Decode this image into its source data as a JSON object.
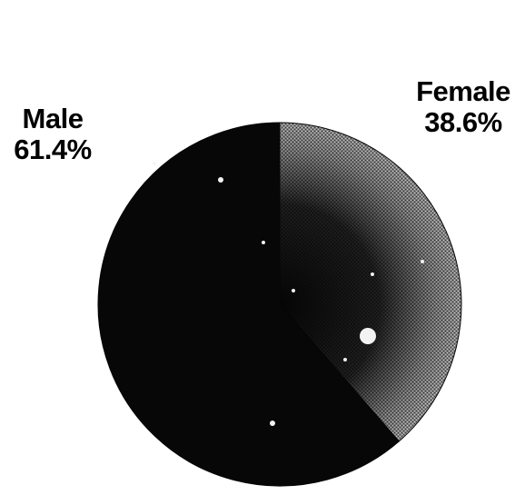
{
  "chart_data": {
    "type": "pie",
    "title": "",
    "slices": [
      {
        "label": "Male",
        "value": 61.4,
        "display": "61.4%",
        "color": "#070707"
      },
      {
        "label": "Female",
        "value": 38.6,
        "display": "38.6%",
        "color": "#7a7a7a"
      }
    ],
    "start_angle_deg": 0,
    "direction": "counterclockwise",
    "legend": "none"
  }
}
